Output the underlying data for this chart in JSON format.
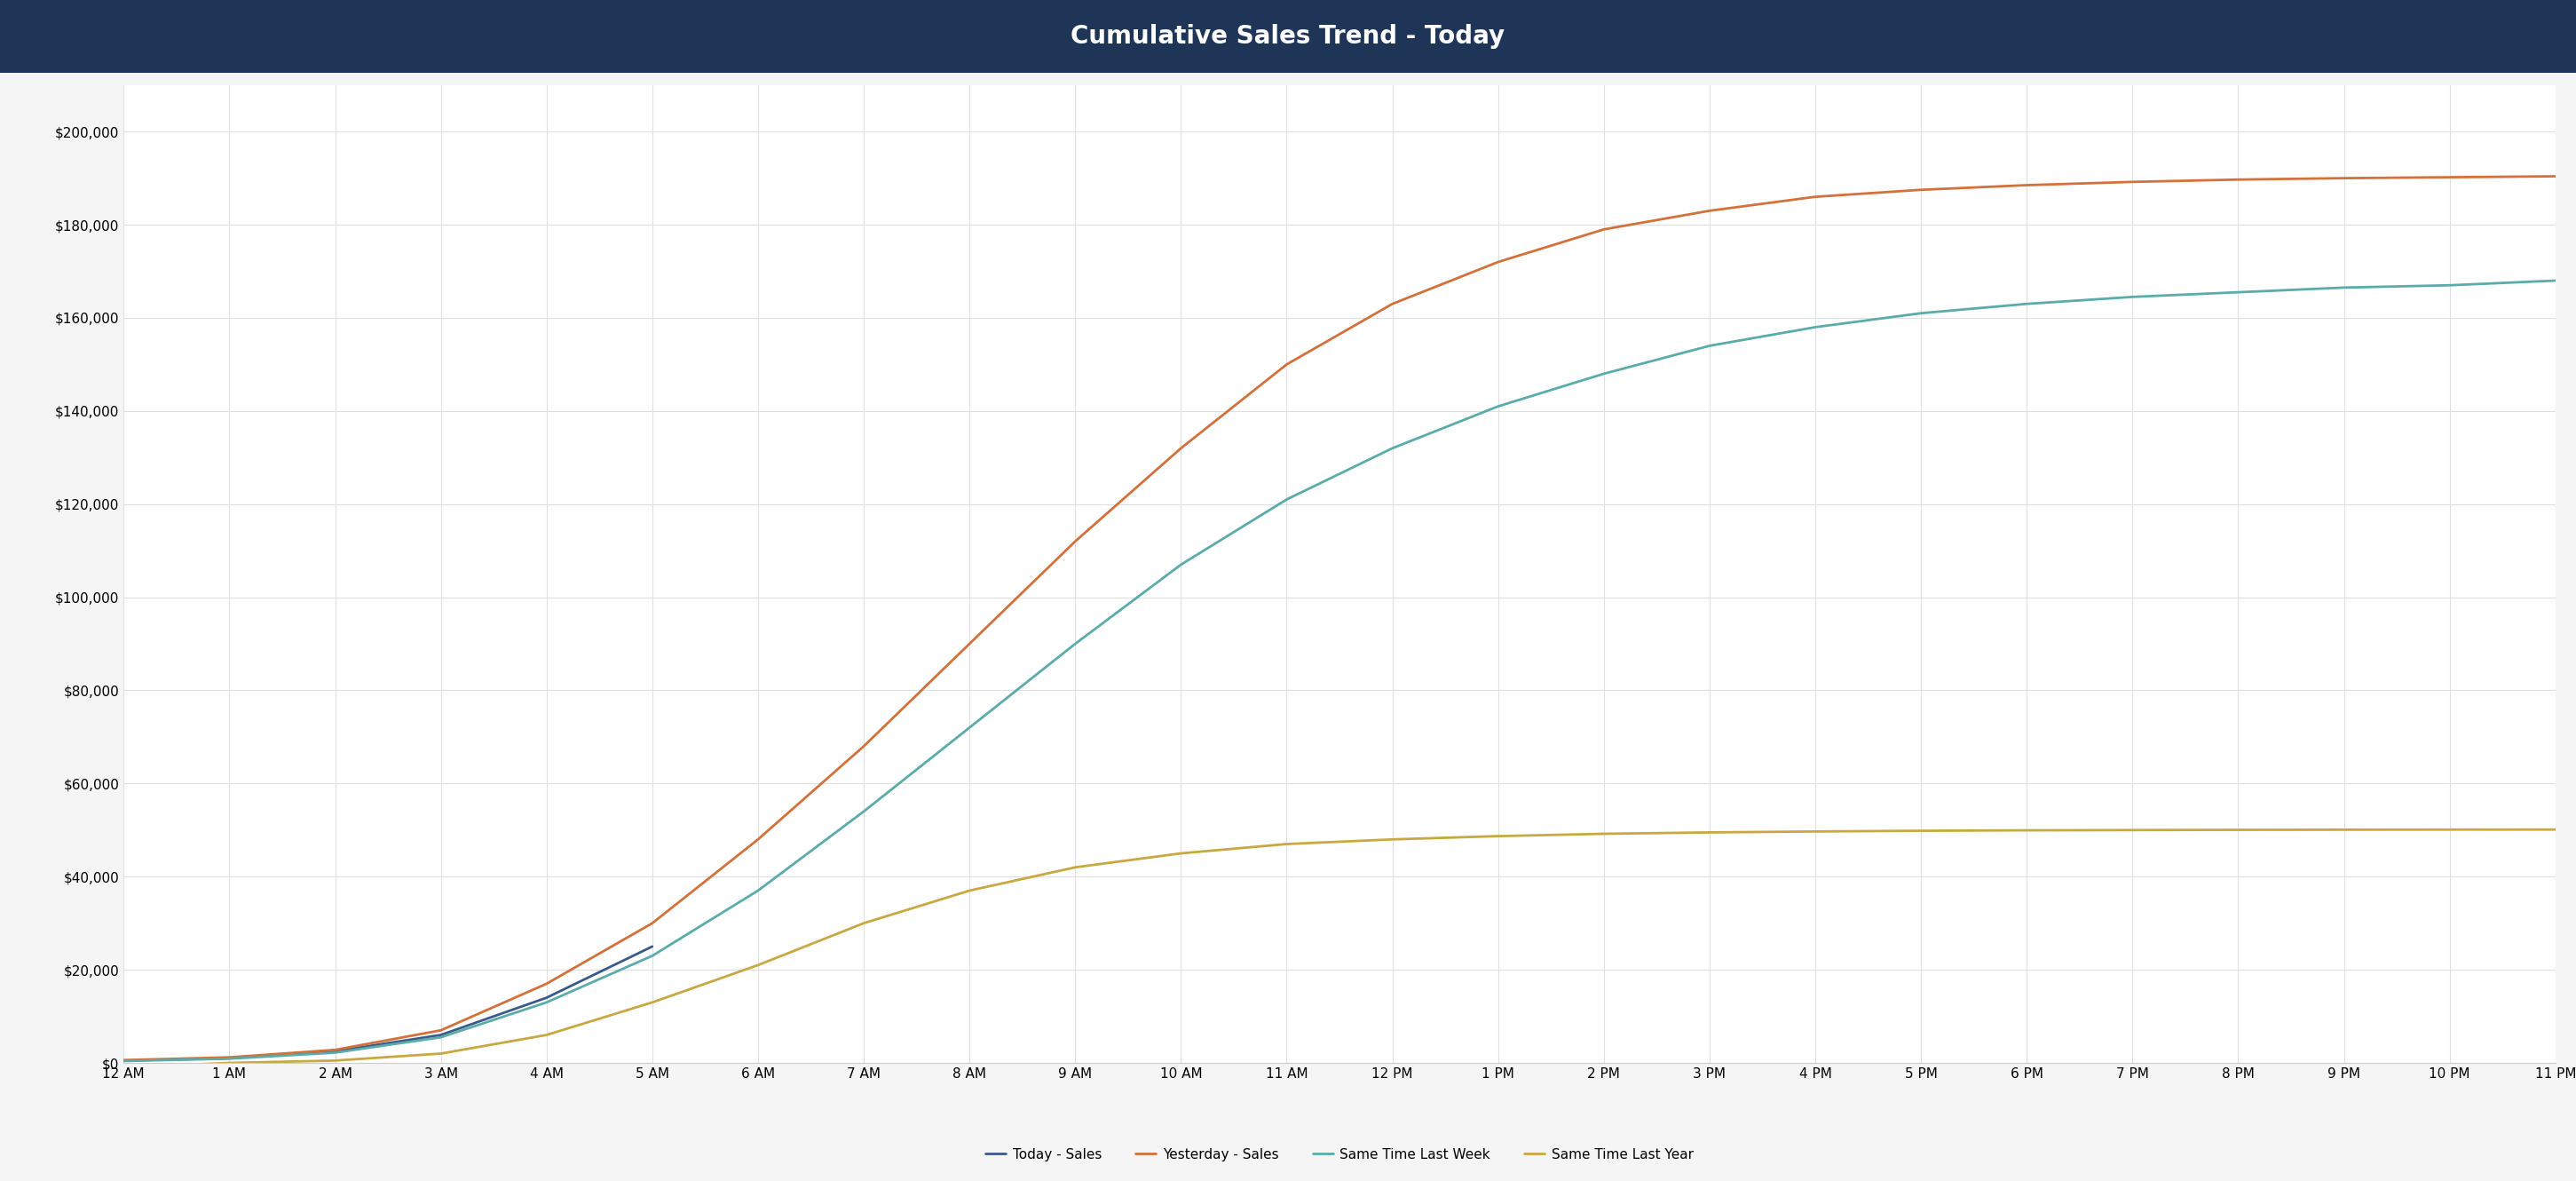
{
  "title": "Cumulative Sales Trend - Today",
  "title_bg_color": "#1e3558",
  "title_text_color": "#ffffff",
  "bg_color": "#f5f5f5",
  "plot_bg_color": "#ffffff",
  "grid_color": "#e0e0e0",
  "ylim": [
    0,
    210000
  ],
  "yticks": [
    0,
    20000,
    40000,
    60000,
    80000,
    100000,
    120000,
    140000,
    160000,
    180000,
    200000
  ],
  "xlabel_hours": [
    "12 AM",
    "1 AM",
    "2 AM",
    "3 AM",
    "4 AM",
    "5 AM",
    "6 AM",
    "7 AM",
    "8 AM",
    "9 AM",
    "10 AM",
    "11 AM",
    "12 PM",
    "1 PM",
    "2 PM",
    "3 PM",
    "4 PM",
    "5 PM",
    "6 PM",
    "7 PM",
    "8 PM",
    "9 PM",
    "10 PM",
    "11 PM"
  ],
  "series": {
    "today": {
      "label": "Today - Sales",
      "color": "#3a5a8c",
      "values": [
        500,
        1000,
        2500,
        6000,
        14000,
        25000,
        null,
        null,
        null,
        null,
        null,
        null,
        null,
        null,
        null,
        null,
        null,
        null,
        null,
        null,
        null,
        null,
        null,
        null
      ]
    },
    "yesterday": {
      "label": "Yesterday - Sales",
      "color": "#d4703a",
      "values": [
        600,
        1200,
        2800,
        7000,
        17000,
        30000,
        48000,
        68000,
        90000,
        112000,
        132000,
        150000,
        163000,
        172000,
        179000,
        183000,
        186000,
        187500,
        188500,
        189200,
        189700,
        190000,
        190200,
        190400
      ]
    },
    "last_week": {
      "label": "Same Time Last Week",
      "color": "#5aacaa",
      "values": [
        400,
        900,
        2200,
        5500,
        13000,
        23000,
        37000,
        54000,
        72000,
        90000,
        107000,
        121000,
        132000,
        141000,
        148000,
        154000,
        158000,
        161000,
        163000,
        164500,
        165500,
        166500,
        167000,
        168000
      ]
    },
    "last_year": {
      "label": "Same Time Last Year",
      "color": "#c8a840",
      "values": [
        -1000,
        0,
        500,
        2000,
        6000,
        13000,
        21000,
        30000,
        37000,
        42000,
        45000,
        47000,
        48000,
        48700,
        49200,
        49500,
        49700,
        49850,
        49950,
        50000,
        50050,
        50080,
        50100,
        50110
      ]
    }
  }
}
